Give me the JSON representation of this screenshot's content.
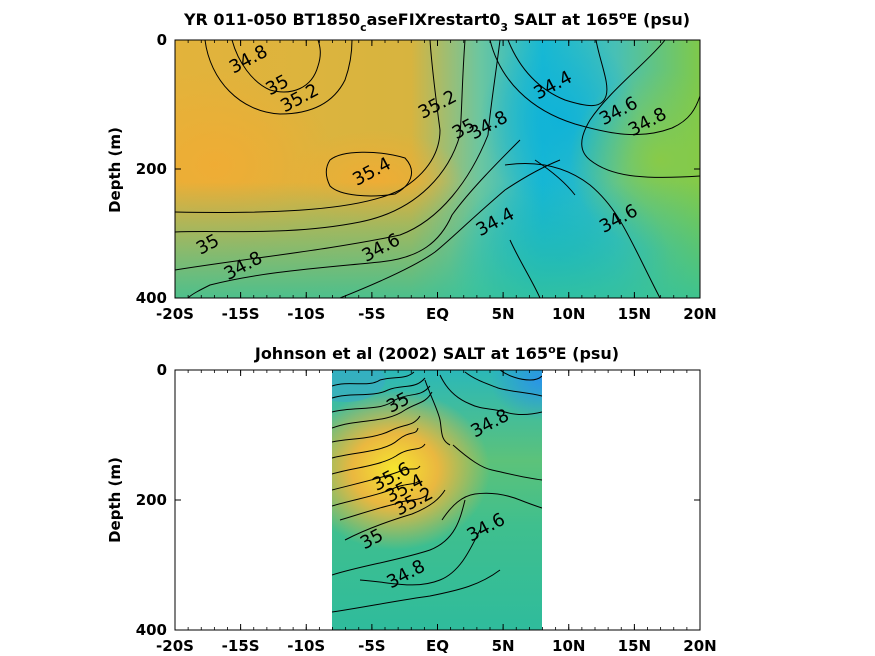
{
  "chart_data": [
    {
      "type": "heatmap",
      "title": "YR 011-050 BT1850",
      "title_sub": "c",
      "title_mid": "aseFIXrestart0",
      "title_sub2": "3",
      "title_tail": " SALT at 165",
      "title_sup": "o",
      "title_end": "E (psu)",
      "xlabel": "",
      "ylabel": "Depth (m)",
      "x_ticks": [
        "-20S",
        "-15S",
        "-10S",
        "-5S",
        "EQ",
        "5N",
        "10N",
        "15N",
        "20N"
      ],
      "y_ticks": [
        "0",
        "200",
        "400"
      ],
      "xlim": [
        -20,
        20
      ],
      "ylim": [
        400,
        0
      ],
      "colors": {
        "low": "#12b5d6",
        "mid": "#7fc94a",
        "high": "#f0b72e"
      },
      "contour_labels": [
        {
          "text": "34.8",
          "lat": -14.2,
          "depth": 38
        },
        {
          "text": "35",
          "lat": -12.0,
          "depth": 78
        },
        {
          "text": "35.2",
          "lat": -10.3,
          "depth": 98
        },
        {
          "text": "35.2",
          "lat": 0.2,
          "depth": 108
        },
        {
          "text": "35",
          "lat": 2.2,
          "depth": 146
        },
        {
          "text": "34.8",
          "lat": 4.1,
          "depth": 140
        },
        {
          "text": "35.4",
          "lat": -4.8,
          "depth": 212
        },
        {
          "text": "34.4",
          "lat": 9.0,
          "depth": 78
        },
        {
          "text": "34.6",
          "lat": 14.0,
          "depth": 118
        },
        {
          "text": "34.8",
          "lat": 16.2,
          "depth": 135
        },
        {
          "text": "34.6",
          "lat": 14.0,
          "depth": 285
        },
        {
          "text": "34.4",
          "lat": 4.6,
          "depth": 290
        },
        {
          "text": "34.6",
          "lat": -4.1,
          "depth": 330
        },
        {
          "text": "35",
          "lat": -17.3,
          "depth": 325
        },
        {
          "text": "34.8",
          "lat": -14.6,
          "depth": 358
        }
      ]
    },
    {
      "type": "heatmap",
      "title": "Johnson et al (2002) SALT at 165",
      "title_sup": "o",
      "title_end": "E (psu)",
      "xlabel": "",
      "ylabel": "Depth (m)",
      "x_ticks": [
        "-20S",
        "-15S",
        "-10S",
        "-5S",
        "EQ",
        "5N",
        "10N",
        "15N",
        "20N"
      ],
      "y_ticks": [
        "0",
        "200",
        "400"
      ],
      "xlim": [
        -20,
        20
      ],
      "ylim": [
        400,
        0
      ],
      "data_lat_range": [
        -8,
        8
      ],
      "colors": {
        "low": "#2aa6d6",
        "mid": "#5fc06a",
        "high": "#f7d830"
      },
      "contour_labels": [
        {
          "text": "35",
          "lat": -2.8,
          "depth": 58
        },
        {
          "text": "34.8",
          "lat": 4.2,
          "depth": 90
        },
        {
          "text": "35.6",
          "lat": -3.3,
          "depth": 172
        },
        {
          "text": "35.4",
          "lat": -2.3,
          "depth": 190
        },
        {
          "text": "35.2",
          "lat": -1.6,
          "depth": 210
        },
        {
          "text": "35",
          "lat": -4.8,
          "depth": 268
        },
        {
          "text": "34.6",
          "lat": 3.9,
          "depth": 250
        },
        {
          "text": "34.8",
          "lat": -2.2,
          "depth": 322
        }
      ]
    }
  ]
}
